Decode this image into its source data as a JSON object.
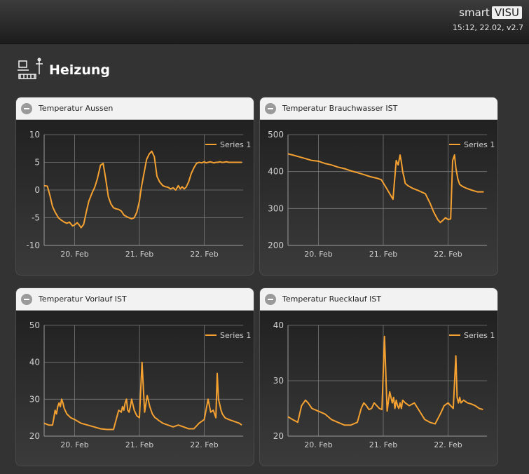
{
  "header": {
    "brand_smart": "smart",
    "brand_visu": "VISU",
    "status": "15:12, 22.02, v2.7"
  },
  "page": {
    "title": "Heizung",
    "icon": "heating-icon"
  },
  "colors": {
    "series": "#f5a131",
    "grid": "#7a7a7a",
    "text": "#cfcfcf"
  },
  "panels": [
    {
      "title": "Temperatur Aussen"
    },
    {
      "title": "Temperatur Brauchwasser IST"
    },
    {
      "title": "Temperatur Vorlauf IST"
    },
    {
      "title": "Temperatur Ruecklauf IST"
    }
  ],
  "chart_data": [
    {
      "type": "line",
      "title": "Temperatur Aussen",
      "legend": "top-right",
      "grid": true,
      "ylim": [
        -10,
        10
      ],
      "y_ticks": [
        "10",
        "5",
        "0",
        "-5",
        "-10"
      ],
      "x_ticks": [
        "20. Feb",
        "21. Feb",
        "22. Feb"
      ],
      "xlim_days": [
        19.53,
        22.6
      ],
      "series": [
        {
          "name": "Series 1",
          "x": [
            19.53,
            19.58,
            19.62,
            19.66,
            19.7,
            19.75,
            19.79,
            19.84,
            19.88,
            19.92,
            19.97,
            20.0,
            20.04,
            20.07,
            20.1,
            20.14,
            20.18,
            20.22,
            20.27,
            20.31,
            20.35,
            20.4,
            20.44,
            20.48,
            20.52,
            20.56,
            20.6,
            20.64,
            20.68,
            20.72,
            20.76,
            20.8,
            20.84,
            20.88,
            20.92,
            20.96,
            21.0,
            21.03,
            21.07,
            21.11,
            21.15,
            21.19,
            21.23,
            21.27,
            21.31,
            21.36,
            21.4,
            21.44,
            21.48,
            21.52,
            21.56,
            21.6,
            21.63,
            21.66,
            21.69,
            21.72,
            21.76,
            21.8,
            21.84,
            21.88,
            21.92,
            21.96,
            22.0,
            22.03,
            22.06,
            22.09,
            22.12,
            22.15,
            22.18,
            22.21,
            22.24,
            22.27,
            22.3,
            22.34,
            22.38,
            22.42,
            22.46,
            22.5,
            22.54,
            22.58
          ],
          "y": [
            0.8,
            0.7,
            -1.0,
            -3.0,
            -4.0,
            -5.0,
            -5.4,
            -5.8,
            -6.0,
            -5.8,
            -6.5,
            -6.3,
            -5.9,
            -6.3,
            -6.8,
            -6.2,
            -4.0,
            -2.0,
            -0.5,
            0.5,
            2.0,
            4.5,
            4.8,
            2.0,
            -1.2,
            -2.5,
            -3.2,
            -3.4,
            -3.5,
            -3.8,
            -4.5,
            -4.8,
            -5.0,
            -5.2,
            -5.0,
            -4.0,
            -2.0,
            0.5,
            3.0,
            5.5,
            6.5,
            7.0,
            6.0,
            2.5,
            1.5,
            0.8,
            0.6,
            0.5,
            0.2,
            0.4,
            0.0,
            0.8,
            0.2,
            0.6,
            0.2,
            0.5,
            1.5,
            3.0,
            4.0,
            4.8,
            5.0,
            4.9,
            5.1,
            4.9,
            5.0,
            5.1,
            5.0,
            4.9,
            5.0,
            5.0,
            5.1,
            5.0,
            5.0,
            5.1,
            5.0,
            5.0,
            5.0,
            5.0,
            5.0,
            5.0
          ]
        }
      ]
    },
    {
      "type": "line",
      "title": "Temperatur Brauchwasser IST",
      "legend": "top-right",
      "grid": true,
      "ylim": [
        200,
        500
      ],
      "y_ticks": [
        "500",
        "400",
        "300",
        "200"
      ],
      "x_ticks": [
        "20. Feb",
        "21. Feb",
        "22. Feb"
      ],
      "xlim_days": [
        19.53,
        22.6
      ],
      "series": [
        {
          "name": "Series 1",
          "x": [
            19.53,
            19.6,
            19.7,
            19.8,
            19.9,
            20.0,
            20.1,
            20.2,
            20.3,
            20.4,
            20.5,
            20.6,
            20.7,
            20.8,
            20.9,
            20.97,
            21.05,
            21.1,
            21.15,
            21.2,
            21.23,
            21.26,
            21.28,
            21.3,
            21.32,
            21.34,
            21.38,
            21.45,
            21.55,
            21.65,
            21.72,
            21.78,
            21.84,
            21.88,
            21.92,
            21.96,
            22.0,
            22.04,
            22.07,
            22.1,
            22.12,
            22.15,
            22.18,
            22.22,
            22.28,
            22.36,
            22.45,
            22.55
          ],
          "y": [
            448,
            445,
            440,
            435,
            430,
            428,
            422,
            418,
            412,
            408,
            402,
            397,
            392,
            386,
            382,
            378,
            355,
            340,
            325,
            430,
            418,
            445,
            425,
            400,
            385,
            368,
            362,
            355,
            348,
            340,
            315,
            290,
            270,
            262,
            268,
            275,
            270,
            272,
            430,
            445,
            410,
            380,
            365,
            360,
            355,
            350,
            345,
            345
          ]
        }
      ]
    },
    {
      "type": "line",
      "title": "Temperatur Vorlauf IST",
      "legend": "top-right",
      "grid": true,
      "ylim": [
        20,
        50
      ],
      "y_ticks": [
        "50",
        "40",
        "30",
        "20"
      ],
      "x_ticks": [
        "20. Feb",
        "21. Feb",
        "22. Feb"
      ],
      "xlim_days": [
        19.53,
        22.6
      ],
      "series": [
        {
          "name": "Series 1",
          "x": [
            19.53,
            19.6,
            19.66,
            19.68,
            19.7,
            19.72,
            19.74,
            19.76,
            19.78,
            19.8,
            19.82,
            19.84,
            19.88,
            19.94,
            20.0,
            20.1,
            20.2,
            20.3,
            20.4,
            20.5,
            20.6,
            20.68,
            20.72,
            20.74,
            20.76,
            20.78,
            20.8,
            20.82,
            20.84,
            20.86,
            20.88,
            20.92,
            20.96,
            21.0,
            21.04,
            21.08,
            21.12,
            21.16,
            21.2,
            21.22,
            21.24,
            21.26,
            21.28,
            21.3,
            21.32,
            21.36,
            21.44,
            21.52,
            21.6,
            21.68,
            21.76,
            21.84,
            21.92,
            22.0,
            22.06,
            22.1,
            22.14,
            22.18,
            22.2,
            22.22,
            22.24,
            22.26,
            22.28,
            22.3,
            22.32,
            22.34,
            22.38,
            22.46,
            22.54,
            22.58
          ],
          "y": [
            23.5,
            23.0,
            23.0,
            25.0,
            27.0,
            26.0,
            28.0,
            29.0,
            28.0,
            30.0,
            29.0,
            27.5,
            26.0,
            25.0,
            24.5,
            23.5,
            23.0,
            22.5,
            22.0,
            21.8,
            21.8,
            27.0,
            26.5,
            28.0,
            27.0,
            29.0,
            30.0,
            27.0,
            26.5,
            28.0,
            30.0,
            27.0,
            25.5,
            25.0,
            40.0,
            26.5,
            31.0,
            28.0,
            26.0,
            25.5,
            25.0,
            24.8,
            24.5,
            24.2,
            24.0,
            23.5,
            23.0,
            22.5,
            23.0,
            22.5,
            22.0,
            22.0,
            23.5,
            24.5,
            30.0,
            26.5,
            27.0,
            25.0,
            37.0,
            30.0,
            28.5,
            27.0,
            26.0,
            25.5,
            25.0,
            24.8,
            24.5,
            24.0,
            23.5,
            23.0
          ]
        }
      ]
    },
    {
      "type": "line",
      "title": "Temperatur Ruecklauf IST",
      "legend": "top-right",
      "grid": true,
      "ylim": [
        20,
        40
      ],
      "y_ticks": [
        "40",
        "30",
        "20"
      ],
      "x_ticks": [
        "20. Feb",
        "21. Feb",
        "22. Feb"
      ],
      "xlim_days": [
        19.53,
        22.6
      ],
      "series": [
        {
          "name": "Series 1",
          "x": [
            19.53,
            19.6,
            19.68,
            19.74,
            19.8,
            19.84,
            19.9,
            20.0,
            20.1,
            20.2,
            20.3,
            20.4,
            20.5,
            20.6,
            20.66,
            20.7,
            20.74,
            20.78,
            20.82,
            20.86,
            20.9,
            20.94,
            20.98,
            21.02,
            21.06,
            21.1,
            21.14,
            21.16,
            21.18,
            21.2,
            21.22,
            21.24,
            21.26,
            21.28,
            21.3,
            21.34,
            21.4,
            21.48,
            21.56,
            21.64,
            21.72,
            21.8,
            21.88,
            21.94,
            22.0,
            22.04,
            22.08,
            22.12,
            22.14,
            22.16,
            22.18,
            22.2,
            22.24,
            22.3,
            22.36,
            22.42,
            22.48,
            22.54
          ],
          "y": [
            23.5,
            23.0,
            22.5,
            25.5,
            26.5,
            26.0,
            25.0,
            24.5,
            24.0,
            23.0,
            22.5,
            22.0,
            22.0,
            22.5,
            25.0,
            26.0,
            25.5,
            24.8,
            25.0,
            26.0,
            25.5,
            25.0,
            24.8,
            38.0,
            24.5,
            28.0,
            26.0,
            27.0,
            25.0,
            26.5,
            25.5,
            25.0,
            26.0,
            25.0,
            26.5,
            26.0,
            25.5,
            26.0,
            24.5,
            23.0,
            22.5,
            22.2,
            24.0,
            25.5,
            26.0,
            25.5,
            25.0,
            34.5,
            27.0,
            26.0,
            27.0,
            26.0,
            26.5,
            26.0,
            25.8,
            25.5,
            25.0,
            24.8
          ]
        }
      ]
    }
  ]
}
